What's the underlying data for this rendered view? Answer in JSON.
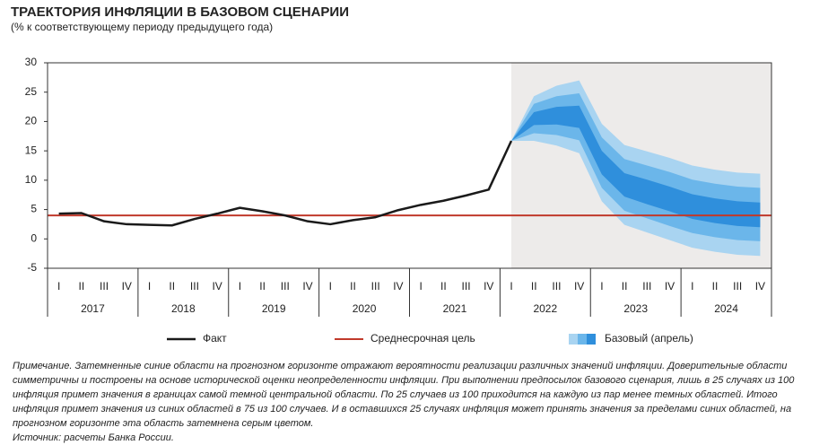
{
  "chart_data": {
    "type": "fan",
    "title": "ТРАЕКТОРИЯ ИНФЛЯЦИИ В БАЗОВОМ СЦЕНАРИИ",
    "subtitle": "(% к соответствующему периоду предыдущего года)",
    "categories": [
      "I",
      "II",
      "III",
      "IV",
      "I",
      "II",
      "III",
      "IV",
      "I",
      "II",
      "III",
      "IV",
      "I",
      "II",
      "III",
      "IV",
      "I",
      "II",
      "III",
      "IV",
      "I",
      "II",
      "III",
      "IV",
      "I",
      "II",
      "III",
      "IV",
      "I",
      "II",
      "III",
      "IV"
    ],
    "years": [
      "2017",
      "2018",
      "2019",
      "2020",
      "2021",
      "2022",
      "2023",
      "2024"
    ],
    "ylim": [
      -5,
      30
    ],
    "yticks": [
      -5,
      0,
      5,
      10,
      15,
      20,
      25,
      30
    ],
    "series": [
      {
        "name": "Факт",
        "color": "#1a1a1a",
        "values": [
          4.3,
          4.4,
          3.0,
          2.5,
          2.4,
          2.3,
          3.4,
          4.3,
          5.3,
          4.7,
          4.0,
          3.0,
          2.5,
          3.2,
          3.7,
          4.9,
          5.8,
          6.5,
          7.4,
          8.4,
          16.7,
          null,
          null,
          null,
          null,
          null,
          null,
          null,
          null,
          null,
          null,
          null
        ]
      }
    ],
    "target": {
      "name": "Среднесрочная цель",
      "color": "#c0392b",
      "value": 4
    },
    "fan": {
      "name": "Базовый (апрель)",
      "shade_color": "#edebea",
      "bands": [
        {
          "color": "#a9d4f1",
          "upper": [
            null,
            null,
            null,
            null,
            null,
            null,
            null,
            null,
            null,
            null,
            null,
            null,
            null,
            null,
            null,
            null,
            null,
            null,
            null,
            null,
            16.7,
            24.3,
            26.1,
            27.0,
            19.6,
            16.0,
            14.9,
            13.8,
            12.5,
            11.8,
            11.3,
            11.1
          ],
          "lower": [
            null,
            null,
            null,
            null,
            null,
            null,
            null,
            null,
            null,
            null,
            null,
            null,
            null,
            null,
            null,
            null,
            null,
            null,
            null,
            null,
            16.7,
            16.7,
            15.9,
            14.6,
            6.4,
            2.4,
            1.1,
            -0.2,
            -1.5,
            -2.2,
            -2.7,
            -2.9
          ]
        },
        {
          "color": "#6bb6ea",
          "upper": [
            null,
            null,
            null,
            null,
            null,
            null,
            null,
            null,
            null,
            null,
            null,
            null,
            null,
            null,
            null,
            null,
            null,
            null,
            null,
            null,
            16.7,
            23.0,
            24.3,
            24.8,
            17.3,
            13.6,
            12.5,
            11.4,
            10.1,
            9.4,
            8.9,
            8.7
          ],
          "lower": [
            null,
            null,
            null,
            null,
            null,
            null,
            null,
            null,
            null,
            null,
            null,
            null,
            null,
            null,
            null,
            null,
            null,
            null,
            null,
            null,
            16.7,
            18.0,
            17.7,
            16.8,
            8.7,
            4.8,
            3.5,
            2.2,
            1.0,
            0.3,
            -0.2,
            -0.4
          ]
        },
        {
          "color": "#2f8fdc",
          "upper": [
            null,
            null,
            null,
            null,
            null,
            null,
            null,
            null,
            null,
            null,
            null,
            null,
            null,
            null,
            null,
            null,
            null,
            null,
            null,
            null,
            16.7,
            21.6,
            22.5,
            22.7,
            15.0,
            11.2,
            10.1,
            8.9,
            7.6,
            6.9,
            6.4,
            6.2
          ],
          "lower": [
            null,
            null,
            null,
            null,
            null,
            null,
            null,
            null,
            null,
            null,
            null,
            null,
            null,
            null,
            null,
            null,
            null,
            null,
            null,
            null,
            16.7,
            19.4,
            19.5,
            18.9,
            11.0,
            7.2,
            5.9,
            4.7,
            3.4,
            2.7,
            2.2,
            2.0
          ]
        }
      ]
    }
  },
  "note": {
    "text": "Примечание. Затемненные синие области на прогнозном горизонте отражают вероятности реализации различных значений инфляции. Доверительные области симметричны и построены на основе исторической оценки неопределенности инфляции. При выполнении предпосылок базового сценария, лишь в 25 случаях из 100 инфляция примет значения в границах самой темной центральной области. По 25 случаев из 100 приходится на каждую из пар менее темных областей. Итого инфляция примет значения из синих областей в 75 из 100 случаев. И в оставшихся 25 случаях инфляция может принять значения за пределами синих областей, на прогнозном горизонте эта область затемнена серым цветом.",
    "source": "Источник: расчеты Банка России."
  }
}
